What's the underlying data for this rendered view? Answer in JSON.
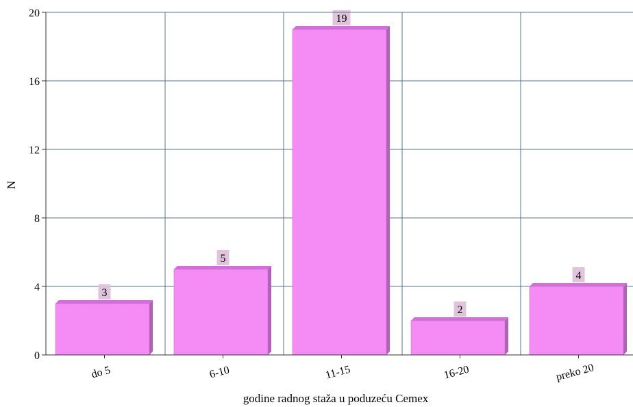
{
  "chart_data": {
    "type": "bar",
    "categories": [
      "do 5",
      "6-10",
      "11-15",
      "16-20",
      "preko 20"
    ],
    "values": [
      3,
      5,
      19,
      2,
      4
    ],
    "data_labels": [
      "3",
      "5",
      "19",
      "2",
      "4"
    ],
    "title": "",
    "xlabel": "godine radnog staža u poduzeću Cemex",
    "ylabel": "N",
    "ylim": [
      0,
      20
    ],
    "yticks": [
      0,
      4,
      8,
      12,
      16,
      20
    ],
    "grid": true,
    "legend": "none",
    "colors": {
      "bar_face": "#f58cf5",
      "bar_top": "#d070d8",
      "bar_side": "#b062b8",
      "label_box": "#e0c4dc",
      "grid": "#5a7390"
    }
  }
}
